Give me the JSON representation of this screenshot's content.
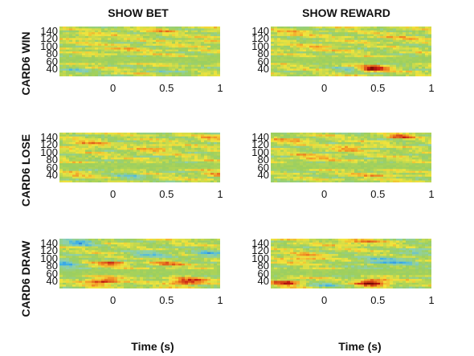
{
  "chart_data": {
    "type": "heatmap",
    "columns": [
      "SHOW BET",
      "SHOW REWARD"
    ],
    "rows": [
      "CARD6 WIN",
      "CARD6 LOSE",
      "CARD6 DRAW"
    ],
    "xlabel": "Time (s)",
    "ylabel": "",
    "x_ticks": [
      "0",
      "0.5",
      "1"
    ],
    "x_tick_values": [
      0,
      0.5,
      1
    ],
    "y_ticks": [
      "140",
      "120",
      "100",
      "80",
      "60",
      "40"
    ],
    "y_tick_values": [
      140,
      120,
      100,
      80,
      60,
      40
    ],
    "xlim": [
      -0.5,
      1
    ],
    "ylim": [
      20,
      150
    ],
    "colormap": [
      "#1e5fd8",
      "#3fb3e8",
      "#8ed0b0",
      "#9ccf5e",
      "#f2e43c",
      "#f08a24",
      "#c81c12",
      "#7a0a05"
    ],
    "panels": [
      {
        "row": 0,
        "col": 0,
        "blobs": [
          {
            "t": 0.45,
            "f": 138,
            "amp": 0.35,
            "st": 0.1,
            "sf": 5
          },
          {
            "t": -0.2,
            "f": 125,
            "amp": 0.25,
            "st": 0.12,
            "sf": 6
          },
          {
            "t": 0.8,
            "f": 110,
            "amp": 0.25,
            "st": 0.15,
            "sf": 5
          },
          {
            "t": -0.35,
            "f": 35,
            "amp": -0.4,
            "st": 0.12,
            "sf": 6
          },
          {
            "t": 0.6,
            "f": 35,
            "amp": -0.3,
            "st": 0.15,
            "sf": 5
          },
          {
            "t": 0.1,
            "f": 90,
            "amp": 0.2,
            "st": 0.2,
            "sf": 8
          }
        ]
      },
      {
        "row": 0,
        "col": 1,
        "blobs": [
          {
            "t": 0.45,
            "f": 40,
            "amp": 1.2,
            "st": 0.1,
            "sf": 5
          },
          {
            "t": 0.2,
            "f": 37,
            "amp": -0.45,
            "st": 0.1,
            "sf": 5
          },
          {
            "t": -0.3,
            "f": 135,
            "amp": 0.3,
            "st": 0.12,
            "sf": 6
          },
          {
            "t": 0.7,
            "f": 120,
            "amp": 0.25,
            "st": 0.15,
            "sf": 6
          },
          {
            "t": -0.1,
            "f": 95,
            "amp": 0.2,
            "st": 0.2,
            "sf": 8
          }
        ]
      },
      {
        "row": 1,
        "col": 0,
        "blobs": [
          {
            "t": -0.25,
            "f": 120,
            "amp": 0.4,
            "st": 0.12,
            "sf": 8
          },
          {
            "t": 0.4,
            "f": 110,
            "amp": 0.35,
            "st": 0.12,
            "sf": 8
          },
          {
            "t": 0.9,
            "f": 135,
            "amp": 0.4,
            "st": 0.1,
            "sf": 5
          },
          {
            "t": 0.15,
            "f": 35,
            "amp": -0.45,
            "st": 0.12,
            "sf": 6
          },
          {
            "t": 0.95,
            "f": 40,
            "amp": 0.45,
            "st": 0.08,
            "sf": 5
          },
          {
            "t": -0.35,
            "f": 40,
            "amp": 0.3,
            "st": 0.1,
            "sf": 5
          }
        ]
      },
      {
        "row": 1,
        "col": 1,
        "blobs": [
          {
            "t": 0.7,
            "f": 140,
            "amp": 0.7,
            "st": 0.08,
            "sf": 4
          },
          {
            "t": 0.25,
            "f": 110,
            "amp": 0.5,
            "st": 0.1,
            "sf": 6
          },
          {
            "t": -0.3,
            "f": 130,
            "amp": 0.35,
            "st": 0.12,
            "sf": 6
          },
          {
            "t": 0.5,
            "f": 40,
            "amp": 0.35,
            "st": 0.15,
            "sf": 5
          },
          {
            "t": -0.1,
            "f": 85,
            "amp": 0.3,
            "st": 0.15,
            "sf": 8
          }
        ]
      },
      {
        "row": 2,
        "col": 0,
        "blobs": [
          {
            "t": -0.3,
            "f": 140,
            "amp": -0.8,
            "st": 0.12,
            "sf": 6
          },
          {
            "t": -0.45,
            "f": 85,
            "amp": -0.7,
            "st": 0.1,
            "sf": 10
          },
          {
            "t": 0.0,
            "f": 85,
            "amp": 0.8,
            "st": 0.1,
            "sf": 4
          },
          {
            "t": 0.5,
            "f": 85,
            "amp": 0.55,
            "st": 0.12,
            "sf": 4
          },
          {
            "t": -0.1,
            "f": 38,
            "amp": 0.9,
            "st": 0.12,
            "sf": 6
          },
          {
            "t": 0.7,
            "f": 38,
            "amp": 1.0,
            "st": 0.12,
            "sf": 6
          },
          {
            "t": 0.35,
            "f": 110,
            "amp": -0.5,
            "st": 0.15,
            "sf": 8
          },
          {
            "t": 0.9,
            "f": 110,
            "amp": -0.55,
            "st": 0.12,
            "sf": 8
          }
        ]
      },
      {
        "row": 2,
        "col": 1,
        "blobs": [
          {
            "t": 0.45,
            "f": 35,
            "amp": 1.25,
            "st": 0.1,
            "sf": 6
          },
          {
            "t": -0.35,
            "f": 35,
            "amp": 0.9,
            "st": 0.1,
            "sf": 5
          },
          {
            "t": 0.05,
            "f": 30,
            "amp": -0.5,
            "st": 0.12,
            "sf": 5
          },
          {
            "t": 0.6,
            "f": 90,
            "amp": -0.6,
            "st": 0.2,
            "sf": 10
          },
          {
            "t": -0.2,
            "f": 100,
            "amp": 0.4,
            "st": 0.15,
            "sf": 8
          },
          {
            "t": 0.3,
            "f": 140,
            "amp": 0.5,
            "st": 0.15,
            "sf": 5
          },
          {
            "t": 0.9,
            "f": 120,
            "amp": -0.4,
            "st": 0.12,
            "sf": 8
          }
        ]
      }
    ]
  }
}
